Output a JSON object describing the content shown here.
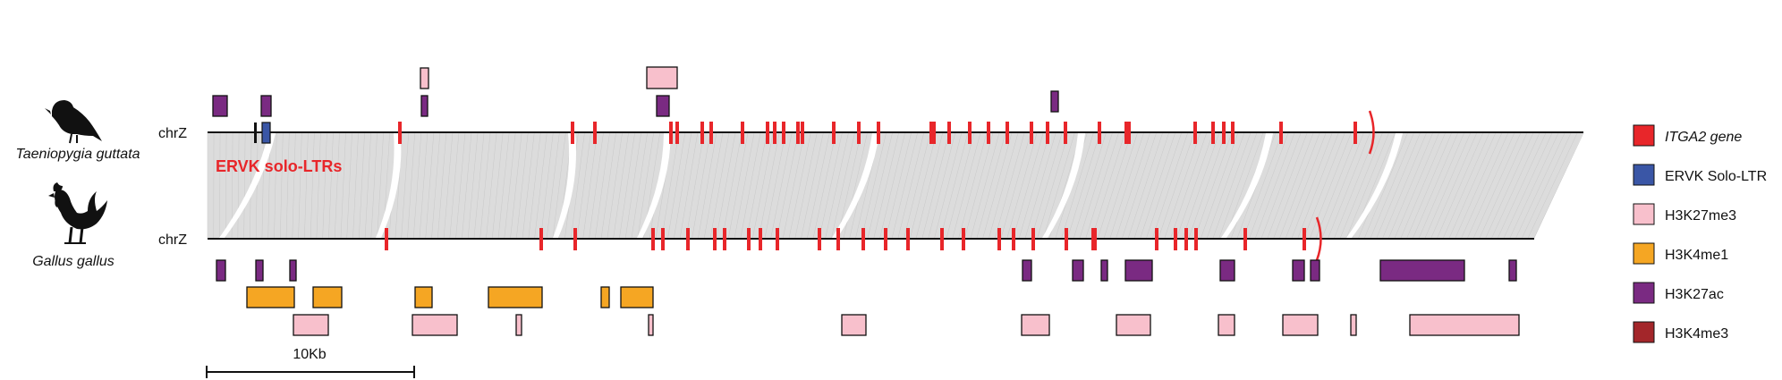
{
  "species": {
    "top": "Taeniopygia guttata",
    "bottom": "Gallus gallus"
  },
  "chromosome": {
    "top_label": "chrZ",
    "bottom_label": "chrZ"
  },
  "annotation": "ERVK solo-LTRs",
  "scale_bar": "10Kb",
  "legend": [
    {
      "label": "ITGA2 gene",
      "color": "#e8262a",
      "italic": true
    },
    {
      "label": "ERVK Solo-LTR",
      "color": "#3a56a6",
      "italic": false
    },
    {
      "label": "H3K27me3",
      "color": "#f8c0cc",
      "italic": false
    },
    {
      "label": "H3K4me1",
      "color": "#f5a623",
      "italic": false
    },
    {
      "label": "H3K27ac",
      "color": "#7a2a82",
      "italic": false
    },
    {
      "label": "H3K4me3",
      "color": "#a3262a",
      "italic": false
    }
  ],
  "icons": [
    "zebra-finch-silhouette-icon",
    "rooster-silhouette-icon"
  ]
}
